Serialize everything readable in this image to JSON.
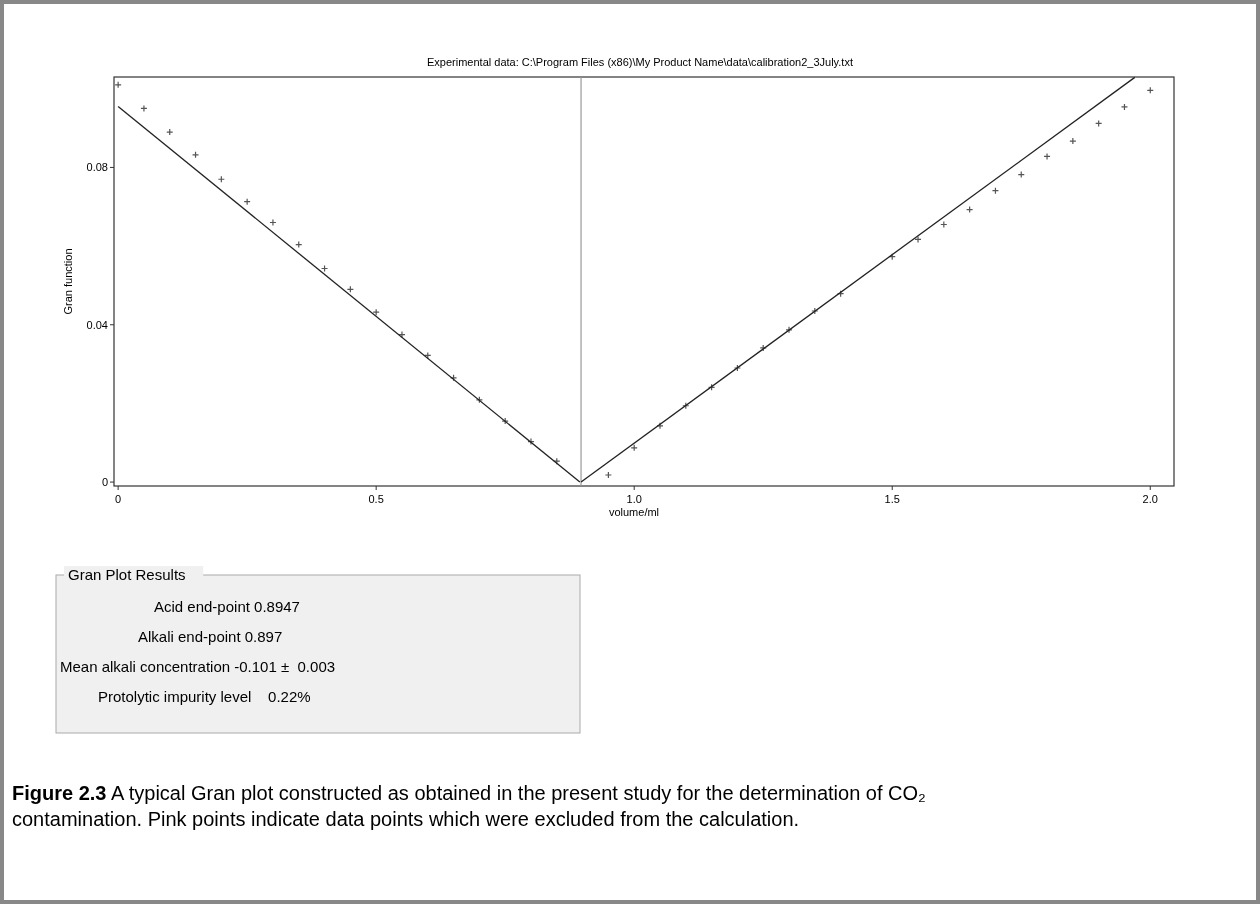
{
  "chart_data": {
    "type": "scatter",
    "title": "Experimental data: C:\\Program Files (x86)\\My Product Name\\data\\calibration2_3July.txt",
    "xlabel": "volume/ml",
    "ylabel": "Gran function",
    "xlim": [
      -0.008,
      2.046
    ],
    "ylim": [
      -0.001,
      0.103
    ],
    "xticks": [
      0,
      0.5,
      {
        "value": 1,
        "label": "1.0"
      },
      {
        "value": 1.5,
        "label": "1.5"
      },
      {
        "value": 2,
        "label": "2.0"
      }
    ],
    "yticks": [
      0,
      0.04,
      0.08
    ],
    "grid": false,
    "series": [
      {
        "marker": "cross",
        "color": "#555555",
        "x": [
          0,
          0.05,
          0.1,
          0.15,
          0.2,
          0.25,
          0.3,
          0.35,
          0.4,
          0.45,
          0.5,
          0.55,
          0.6,
          0.65,
          0.7,
          0.75,
          0.8,
          0.85
        ],
        "values": [
          0.101,
          0.095,
          0.089,
          0.0832,
          0.077,
          0.0713,
          0.066,
          0.0604,
          0.0543,
          0.049,
          0.0432,
          0.0375,
          0.0322,
          0.0265,
          0.0209,
          0.0155,
          0.0103,
          0.0053
        ]
      },
      {
        "marker": "cross",
        "color": "#555555",
        "x": [
          0.95,
          1.0,
          1.05,
          1.1,
          1.15,
          1.2,
          1.25,
          1.3,
          1.35,
          1.4,
          1.5,
          1.55,
          1.6,
          1.65,
          1.7,
          1.75,
          1.8,
          1.85,
          1.9,
          1.95,
          2.0
        ],
        "values": [
          0.0018,
          0.0087,
          0.0143,
          0.0194,
          0.0241,
          0.029,
          0.0341,
          0.0387,
          0.0435,
          0.0479,
          0.0573,
          0.0617,
          0.0655,
          0.0693,
          0.0741,
          0.0782,
          0.0828,
          0.0867,
          0.0912,
          0.0954,
          0.0996
        ]
      },
      {
        "type": "line",
        "color": "#222222",
        "x": [
          0,
          0.8947
        ],
        "values": [
          0.0955,
          0
        ]
      },
      {
        "type": "line",
        "color": "#222222",
        "x": [
          0.897,
          1.97
        ],
        "values": [
          0,
          0.1029
        ]
      }
    ],
    "ref_lines": [
      {
        "axis": "x",
        "value": 0.897,
        "label": null,
        "color": "#999999"
      }
    ],
    "annotations": [
      "Gran Plot Results",
      "Acid end-point 0.8947",
      "Alkali end-point 0.897",
      "Mean alkali concentration -0.101 ±  0.003",
      "Protolytic impurity level    0.22%",
      "Figure 2.3",
      "A typical Gran plot constructed as obtained in the present study for the determination of CO₂ contamination. Pink points indicate data points which were excluded from the calculation."
    ]
  }
}
